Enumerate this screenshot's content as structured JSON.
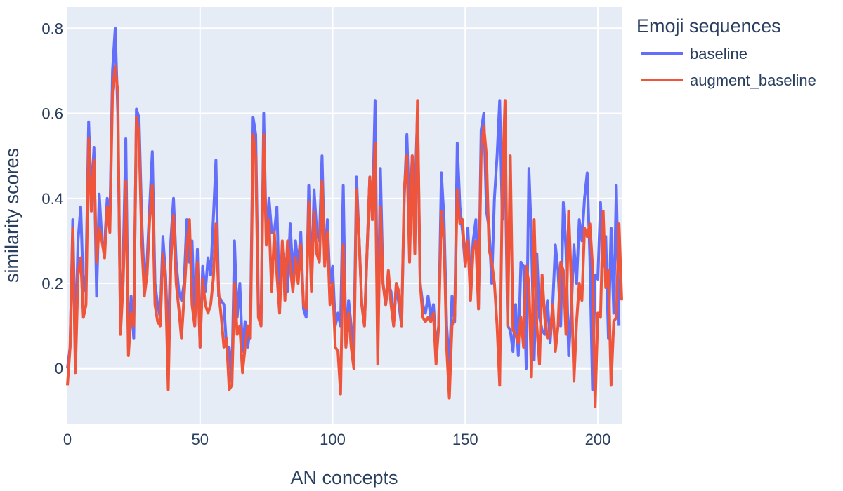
{
  "chart_data": {
    "type": "line",
    "xlabel": "AN concepts",
    "ylabel": "similarity scores",
    "xlim": [
      0,
      209
    ],
    "ylim": [
      -0.13,
      0.85
    ],
    "x_ticks": [
      0,
      50,
      100,
      150,
      200
    ],
    "y_ticks": [
      0,
      0.2,
      0.4,
      0.6,
      0.8
    ],
    "y_tick_labels": [
      "0",
      "0.2",
      "0.4",
      "0.6",
      "0.8"
    ],
    "grid": true,
    "legend_placement": "top-right outside",
    "legend_title": "Emoji sequences",
    "plot_bgcolor": "#e5ecf6",
    "series": [
      {
        "name": "baseline",
        "color": "#636efa",
        "values": [
          0.0,
          0.05,
          0.35,
          0.05,
          0.3,
          0.38,
          0.18,
          0.22,
          0.58,
          0.4,
          0.52,
          0.17,
          0.41,
          0.3,
          0.29,
          0.4,
          0.35,
          0.7,
          0.8,
          0.6,
          0.1,
          0.25,
          0.54,
          0.05,
          0.17,
          0.07,
          0.61,
          0.59,
          0.35,
          0.2,
          0.25,
          0.38,
          0.51,
          0.2,
          0.15,
          0.12,
          0.31,
          0.22,
          0.05,
          0.3,
          0.4,
          0.25,
          0.18,
          0.16,
          0.2,
          0.35,
          0.25,
          0.3,
          0.1,
          0.28,
          0.05,
          0.24,
          0.18,
          0.26,
          0.22,
          0.35,
          0.49,
          0.17,
          0.16,
          0.15,
          0.05,
          0.05,
          -0.03,
          0.3,
          0.12,
          0.2,
          0.04,
          0.11,
          0.05,
          0.1,
          0.59,
          0.55,
          0.15,
          0.1,
          0.6,
          0.3,
          0.4,
          0.32,
          0.32,
          0.38,
          0.14,
          0.28,
          0.25,
          0.18,
          0.34,
          0.22,
          0.3,
          0.24,
          0.32,
          0.14,
          0.12,
          0.43,
          0.2,
          0.42,
          0.32,
          0.3,
          0.5,
          0.25,
          0.35,
          0.2,
          0.24,
          0.1,
          0.13,
          0.1,
          0.43,
          0.05,
          0.16,
          0.1,
          0.05,
          0.45,
          0.3,
          0.15,
          0.1,
          0.28,
          0.45,
          0.35,
          0.63,
          0.05,
          0.47,
          0.2,
          0.15,
          0.2,
          0.18,
          0.1,
          0.2,
          0.15,
          0.1,
          0.4,
          0.55,
          0.35,
          0.5,
          0.4,
          0.6,
          0.2,
          0.15,
          0.13,
          0.17,
          0.12,
          0.15,
          0.05,
          0.1,
          0.46,
          0.35,
          0.1,
          0.0,
          0.17,
          0.11,
          0.53,
          0.38,
          0.32,
          0.24,
          0.33,
          0.2,
          0.3,
          0.35,
          0.14,
          0.56,
          0.6,
          0.37,
          0.33,
          0.2,
          0.4,
          0.5,
          0.63,
          0.35,
          0.5,
          0.1,
          0.09,
          0.04,
          0.15,
          0.03,
          0.25,
          0.24,
          0.0,
          0.47,
          0.3,
          0.02,
          0.27,
          0.12,
          0.09,
          0.08,
          0.16,
          0.06,
          0.15,
          0.29,
          0.23,
          0.1,
          0.39,
          0.28,
          0.03,
          0.14,
          0.29,
          0.2,
          0.35,
          0.3,
          0.4,
          0.46,
          0.26,
          -0.05,
          0.22,
          0.21,
          0.39,
          0.24,
          0.31,
          0.07,
          0.33,
          0.13,
          0.43,
          0.1
        ]
      },
      {
        "name": "augment_baseline",
        "color": "#ef553b",
        "values": [
          -0.04,
          0.05,
          0.33,
          -0.01,
          0.22,
          0.26,
          0.12,
          0.15,
          0.54,
          0.37,
          0.49,
          0.25,
          0.33,
          0.3,
          0.26,
          0.38,
          0.32,
          0.65,
          0.71,
          0.65,
          0.08,
          0.2,
          0.44,
          0.03,
          0.13,
          0.1,
          0.59,
          0.55,
          0.3,
          0.17,
          0.22,
          0.35,
          0.43,
          0.15,
          0.11,
          0.1,
          0.27,
          0.2,
          -0.05,
          0.25,
          0.36,
          0.2,
          0.14,
          0.07,
          0.17,
          0.28,
          0.35,
          0.15,
          0.1,
          0.25,
          0.05,
          0.21,
          0.15,
          0.13,
          0.15,
          0.21,
          0.34,
          0.18,
          0.12,
          0.05,
          0.07,
          -0.05,
          -0.04,
          0.2,
          0.08,
          0.1,
          -0.01,
          0.05,
          0.1,
          0.07,
          0.55,
          0.5,
          0.12,
          0.1,
          0.55,
          0.29,
          0.35,
          0.18,
          0.32,
          0.22,
          0.13,
          0.3,
          0.16,
          0.3,
          0.24,
          0.18,
          0.26,
          0.2,
          0.29,
          0.15,
          0.14,
          0.39,
          0.18,
          0.37,
          0.27,
          0.25,
          0.44,
          0.24,
          0.32,
          0.15,
          0.2,
          0.05,
          0.04,
          -0.06,
          0.29,
          0.05,
          0.13,
          0.05,
          0.0,
          0.42,
          0.3,
          0.15,
          0.1,
          0.28,
          0.45,
          0.35,
          0.53,
          0.01,
          0.38,
          0.2,
          0.15,
          0.23,
          0.15,
          0.1,
          0.2,
          0.18,
          0.1,
          0.42,
          0.5,
          0.25,
          0.5,
          0.27,
          0.63,
          0.2,
          0.12,
          0.11,
          0.12,
          0.11,
          0.13,
          0.01,
          0.1,
          0.37,
          0.3,
          0.05,
          -0.07,
          0.1,
          0.12,
          0.42,
          0.34,
          0.35,
          0.24,
          0.3,
          0.16,
          0.28,
          0.3,
          0.14,
          0.5,
          0.57,
          0.5,
          0.28,
          0.25,
          0.2,
          0.1,
          -0.04,
          0.43,
          0.63,
          0.1,
          0.5,
          0.09,
          0.08,
          0.06,
          0.12,
          0.05,
          0.24,
          0.2,
          -0.02,
          0.35,
          0.1,
          0.01,
          0.22,
          0.12,
          0.07,
          0.08,
          0.15,
          0.04,
          0.1,
          0.25,
          0.23,
          0.08,
          0.37,
          0.2,
          -0.03,
          0.11,
          0.2,
          0.16,
          0.33,
          0.31,
          0.34,
          0.24,
          -0.09,
          0.13,
          0.12,
          0.37,
          0.19,
          0.23,
          -0.04,
          0.11,
          0.12,
          0.34,
          0.16
        ]
      }
    ]
  }
}
